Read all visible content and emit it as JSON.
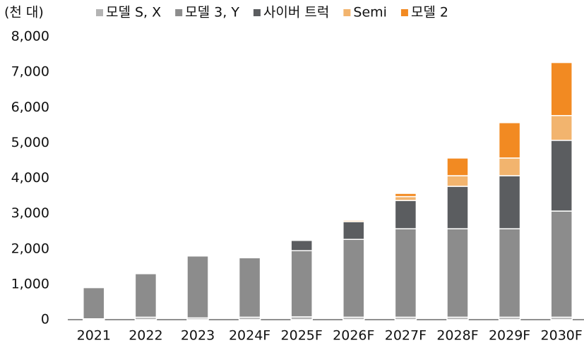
{
  "chart_data": {
    "type": "stacked_bar",
    "unit_label": "(천 대)",
    "categories": [
      "2021",
      "2022",
      "2023",
      "2024F",
      "2025F",
      "2026F",
      "2027F",
      "2028F",
      "2029F",
      "2030F"
    ],
    "series": [
      {
        "name": "모델 S, X",
        "color": "#b4b4b4",
        "values": [
          25,
          70,
          50,
          70,
          80,
          70,
          70,
          70,
          70,
          70
        ]
      },
      {
        "name": "모델 3, Y",
        "color": "#8c8c8c",
        "values": [
          880,
          1230,
          1750,
          1680,
          1870,
          2200,
          2500,
          2500,
          2500,
          3000
        ]
      },
      {
        "name": "사이버 트럭",
        "color": "#5b5d60",
        "values": [
          0,
          0,
          0,
          0,
          290,
          500,
          800,
          1200,
          1500,
          2000
        ]
      },
      {
        "name": "Semi",
        "color": "#f2b46e",
        "values": [
          0,
          0,
          0,
          0,
          0,
          40,
          110,
          300,
          500,
          700
        ]
      },
      {
        "name": "모델 2",
        "color": "#f28a22",
        "values": [
          0,
          0,
          0,
          0,
          0,
          0,
          90,
          500,
          1000,
          1500
        ]
      }
    ],
    "ylim": [
      0,
      8000
    ],
    "yticks": [
      0,
      {
        "value": 1000,
        "label": "1,000"
      },
      {
        "value": 2000,
        "label": "2,000"
      },
      {
        "value": 3000,
        "label": "3,000"
      },
      {
        "value": 4000,
        "label": "4,000"
      },
      {
        "value": 5000,
        "label": "5,000"
      },
      {
        "value": 6000,
        "label": "6,000"
      },
      {
        "value": 7000,
        "label": "7,000"
      },
      {
        "value": 8000,
        "label": "8,000"
      }
    ]
  }
}
